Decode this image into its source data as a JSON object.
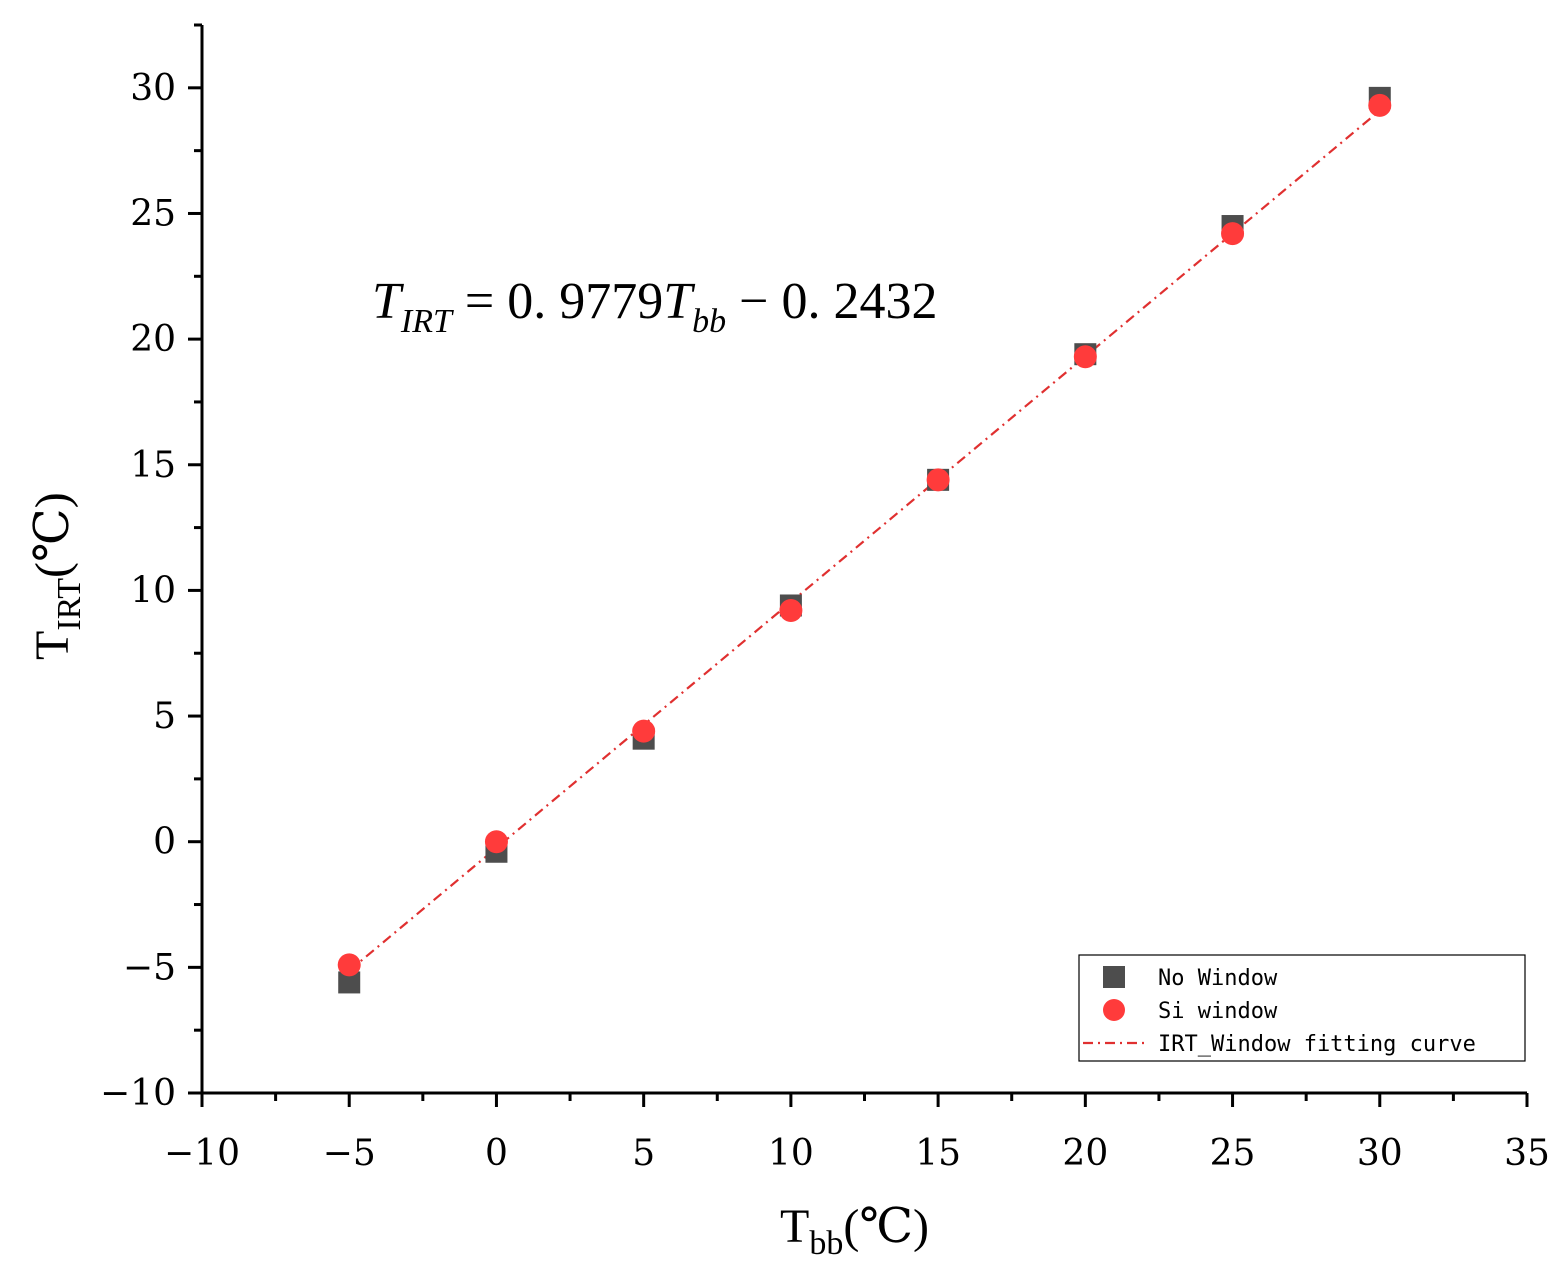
{
  "chart_data": {
    "type": "scatter",
    "xlabel": "T",
    "xlabel_sub": "bb",
    "xlabel_unit": "(℃)",
    "ylabel": "T",
    "ylabel_sub": "IRT",
    "ylabel_unit": "(℃)",
    "xlim": [
      -10,
      35
    ],
    "ylim": [
      -10,
      32.5
    ],
    "x_ticks": [
      -10,
      -5,
      0,
      5,
      10,
      15,
      20,
      25,
      30,
      35
    ],
    "x_tick_labels": [
      "−10",
      "−5",
      "0",
      "5",
      "10",
      "15",
      "20",
      "25",
      "30",
      "35"
    ],
    "y_ticks": [
      -10,
      -5,
      0,
      5,
      10,
      15,
      20,
      25,
      30
    ],
    "y_tick_labels": [
      "−10",
      "−5",
      "0",
      "5",
      "10",
      "15",
      "20",
      "25",
      "30"
    ],
    "grid": false,
    "legend_position": "bottom-right",
    "series": [
      {
        "name": "No Window",
        "marker": "square",
        "color": "#4d4d4d",
        "x": [
          -5,
          0,
          5,
          10,
          15,
          20,
          25,
          30
        ],
        "y": [
          -5.6,
          -0.4,
          4.1,
          9.4,
          14.4,
          19.4,
          24.5,
          29.6
        ]
      },
      {
        "name": "Si window",
        "marker": "circle",
        "color": "#ff3b3b",
        "x": [
          -5,
          0,
          5,
          10,
          15,
          20,
          25,
          30
        ],
        "y": [
          -4.9,
          0.0,
          4.4,
          9.2,
          14.4,
          19.3,
          24.2,
          29.3
        ]
      },
      {
        "name": "IRT_Window fitting curve",
        "marker": "dashdot-line",
        "color": "#e03030",
        "slope": 0.9779,
        "intercept": -0.2432,
        "x_range": [
          -5,
          30
        ]
      }
    ],
    "annotation": {
      "lhs": "T",
      "lhs_sub": "IRT",
      "rhs_1": " = 0. 9779",
      "rhs_T": "T",
      "rhs_sub": "bb",
      "rhs_2": " − 0. 2432"
    }
  }
}
